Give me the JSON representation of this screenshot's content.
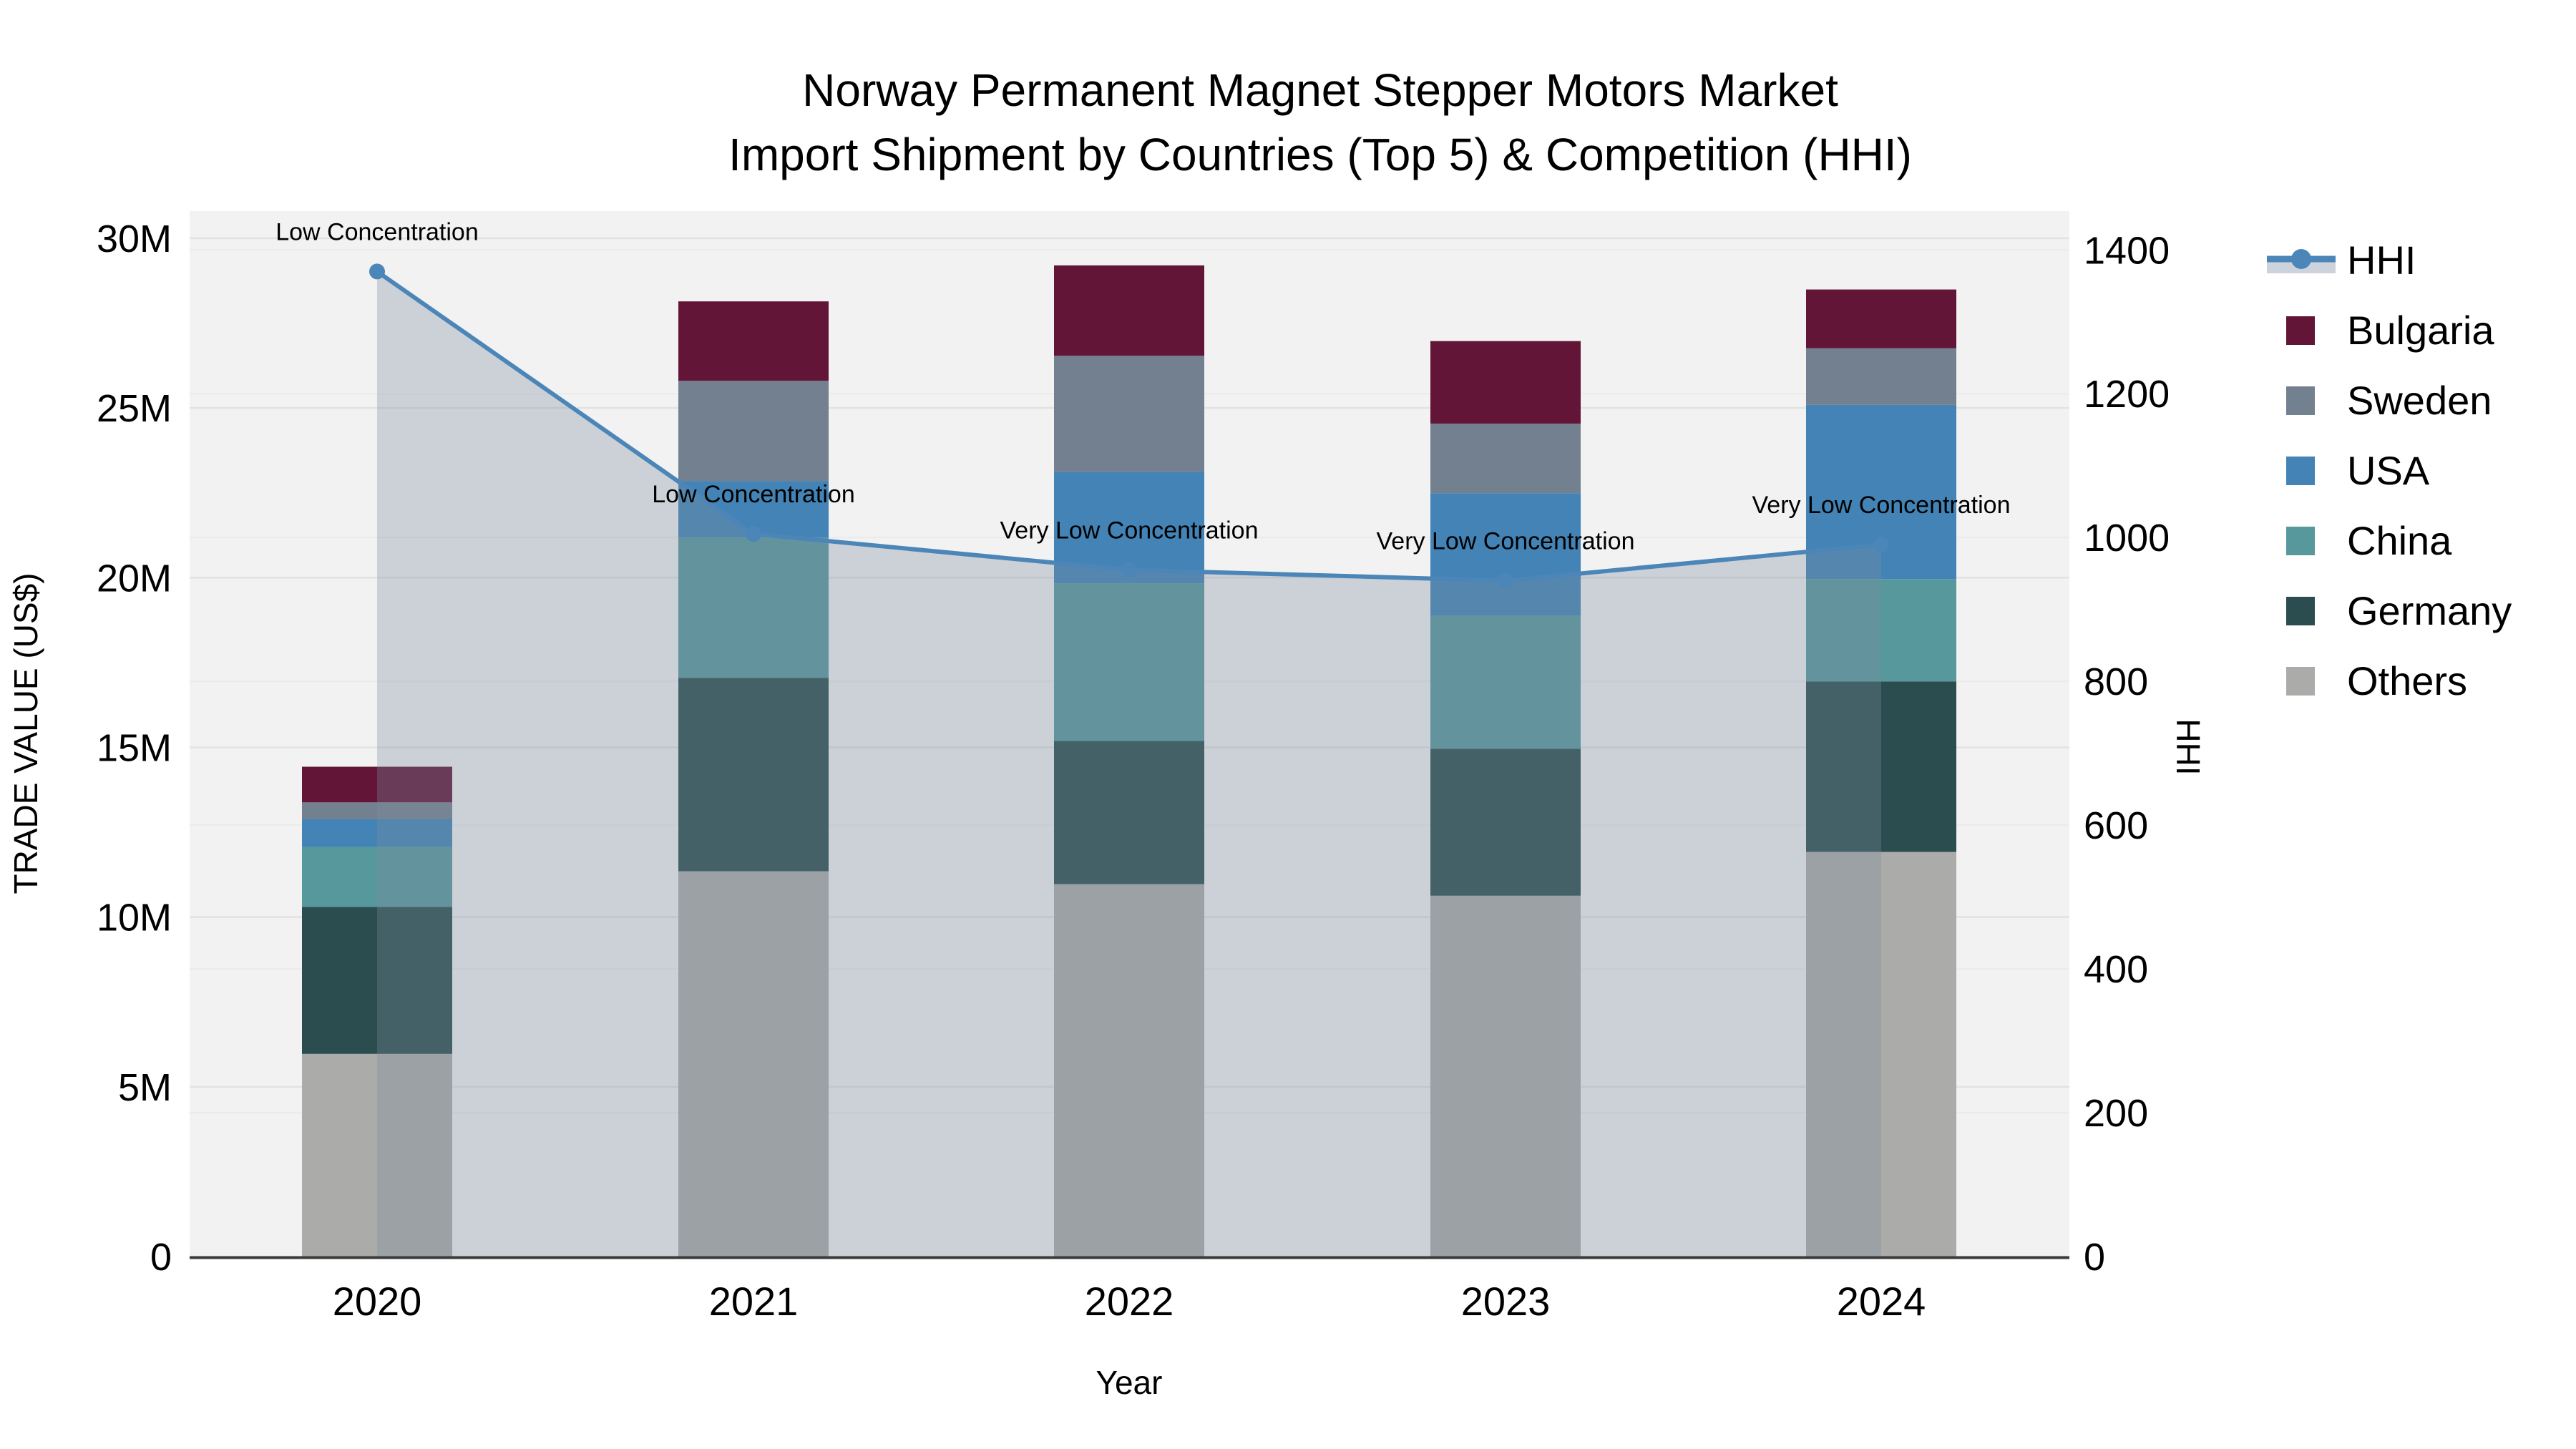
{
  "title": {
    "line1": "Norway Permanent Magnet Stepper Motors Market",
    "line2": "Import Shipment by Countries (Top 5) & Competition (HHI)"
  },
  "axes": {
    "x_title": "Year",
    "y_left_title": "TRADE VALUE (US$)",
    "y_right_title": "HHI",
    "left_ticks": [
      "0",
      "5M",
      "10M",
      "15M",
      "20M",
      "25M",
      "30M"
    ],
    "right_ticks": [
      "0",
      "200",
      "400",
      "600",
      "800",
      "1000",
      "1200",
      "1400"
    ]
  },
  "legend": {
    "items": [
      {
        "label": "HHI",
        "type": "line"
      },
      {
        "label": "Bulgaria",
        "type": "swatch"
      },
      {
        "label": "Sweden",
        "type": "swatch"
      },
      {
        "label": "USA",
        "type": "swatch"
      },
      {
        "label": "China",
        "type": "swatch"
      },
      {
        "label": "Germany",
        "type": "swatch"
      },
      {
        "label": "Others",
        "type": "swatch"
      }
    ]
  },
  "chart_data": {
    "type": "bar",
    "subtype": "stacked-bars-with-line",
    "title": "Norway Permanent Magnet Stepper Motors Market Import Shipment by Countries (Top 5) & Competition (HHI)",
    "xlabel": "Year",
    "ylabel": "TRADE VALUE (US$)",
    "y2label": "HHI",
    "categories": [
      "2020",
      "2021",
      "2022",
      "2023",
      "2024"
    ],
    "unit": "million US$",
    "stack_order_bottom_to_top": [
      "Others",
      "Germany",
      "China",
      "USA",
      "Sweden",
      "Bulgaria"
    ],
    "series": [
      {
        "name": "Bulgaria",
        "values": [
          1.05,
          2.34,
          2.66,
          2.43,
          1.73
        ]
      },
      {
        "name": "Sweden",
        "values": [
          0.49,
          2.95,
          3.42,
          2.05,
          1.67
        ]
      },
      {
        "name": "USA",
        "values": [
          0.82,
          1.67,
          3.29,
          3.61,
          5.13
        ]
      },
      {
        "name": "China",
        "values": [
          1.77,
          4.13,
          4.64,
          3.92,
          3.02
        ]
      },
      {
        "name": "Germany",
        "values": [
          4.33,
          5.7,
          4.22,
          4.33,
          5.02
        ]
      },
      {
        "name": "Others",
        "values": [
          5.97,
          11.35,
          10.97,
          10.63,
          11.92
        ]
      }
    ],
    "totals": [
      14.43,
      28.14,
      29.2,
      26.97,
      28.49
    ],
    "line_series": {
      "name": "HHI",
      "values": [
        1370,
        1005,
        955,
        940,
        990
      ],
      "axis": "right"
    },
    "annotations": [
      {
        "x": "2020",
        "label": "Low Concentration"
      },
      {
        "x": "2021",
        "label": "Low Concentration"
      },
      {
        "x": "2022",
        "label": "Very Low Concentration"
      },
      {
        "x": "2023",
        "label": "Very Low Concentration"
      },
      {
        "x": "2024",
        "label": "Very Low Concentration"
      }
    ],
    "ylim_left": [
      0,
      30.8
    ],
    "ylim_right": [
      0,
      1454
    ],
    "grid": true,
    "legend_position": "right",
    "colors": {
      "Bulgaria": "#621537",
      "Sweden": "#73808F",
      "USA": "#4383B5",
      "China": "#57989D",
      "Germany": "#2B4D4F",
      "Others": "#ABABA9",
      "hhi_line": "#4C86B8",
      "hhi_area_fill": "rgba(124,140,160,0.32)",
      "hhi_area_legend_swatch": "#CDD3DD",
      "plot_bg": "#F2F2F2",
      "grid_left": "#E2E2E2",
      "grid_right": "#EBEBEB",
      "axis_line": "#3B3B3B",
      "text": "#000000"
    }
  }
}
